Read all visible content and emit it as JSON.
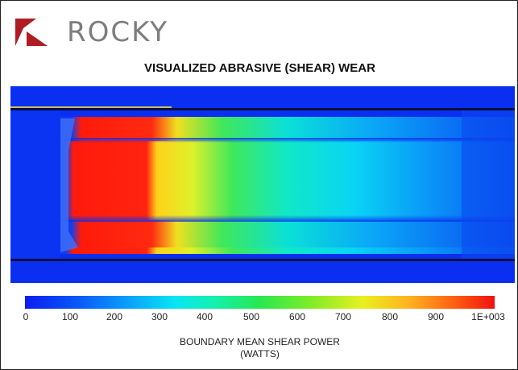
{
  "header": {
    "brand": "ROCKY",
    "title": "VISUALIZED ABRASIVE (SHEAR) WEAR"
  },
  "legend": {
    "ticks": [
      "0",
      "100",
      "200",
      "300",
      "400",
      "500",
      "600",
      "700",
      "800",
      "900",
      "1E+003"
    ],
    "label_line1": "BOUNDARY MEAN SHEAR POWER",
    "label_line2": "(WATTS)"
  },
  "colors": {
    "brand_logo": "#b01c24",
    "brand_text": "#7d7d7d",
    "low": "#0a1ef0",
    "high": "#f01010"
  }
}
